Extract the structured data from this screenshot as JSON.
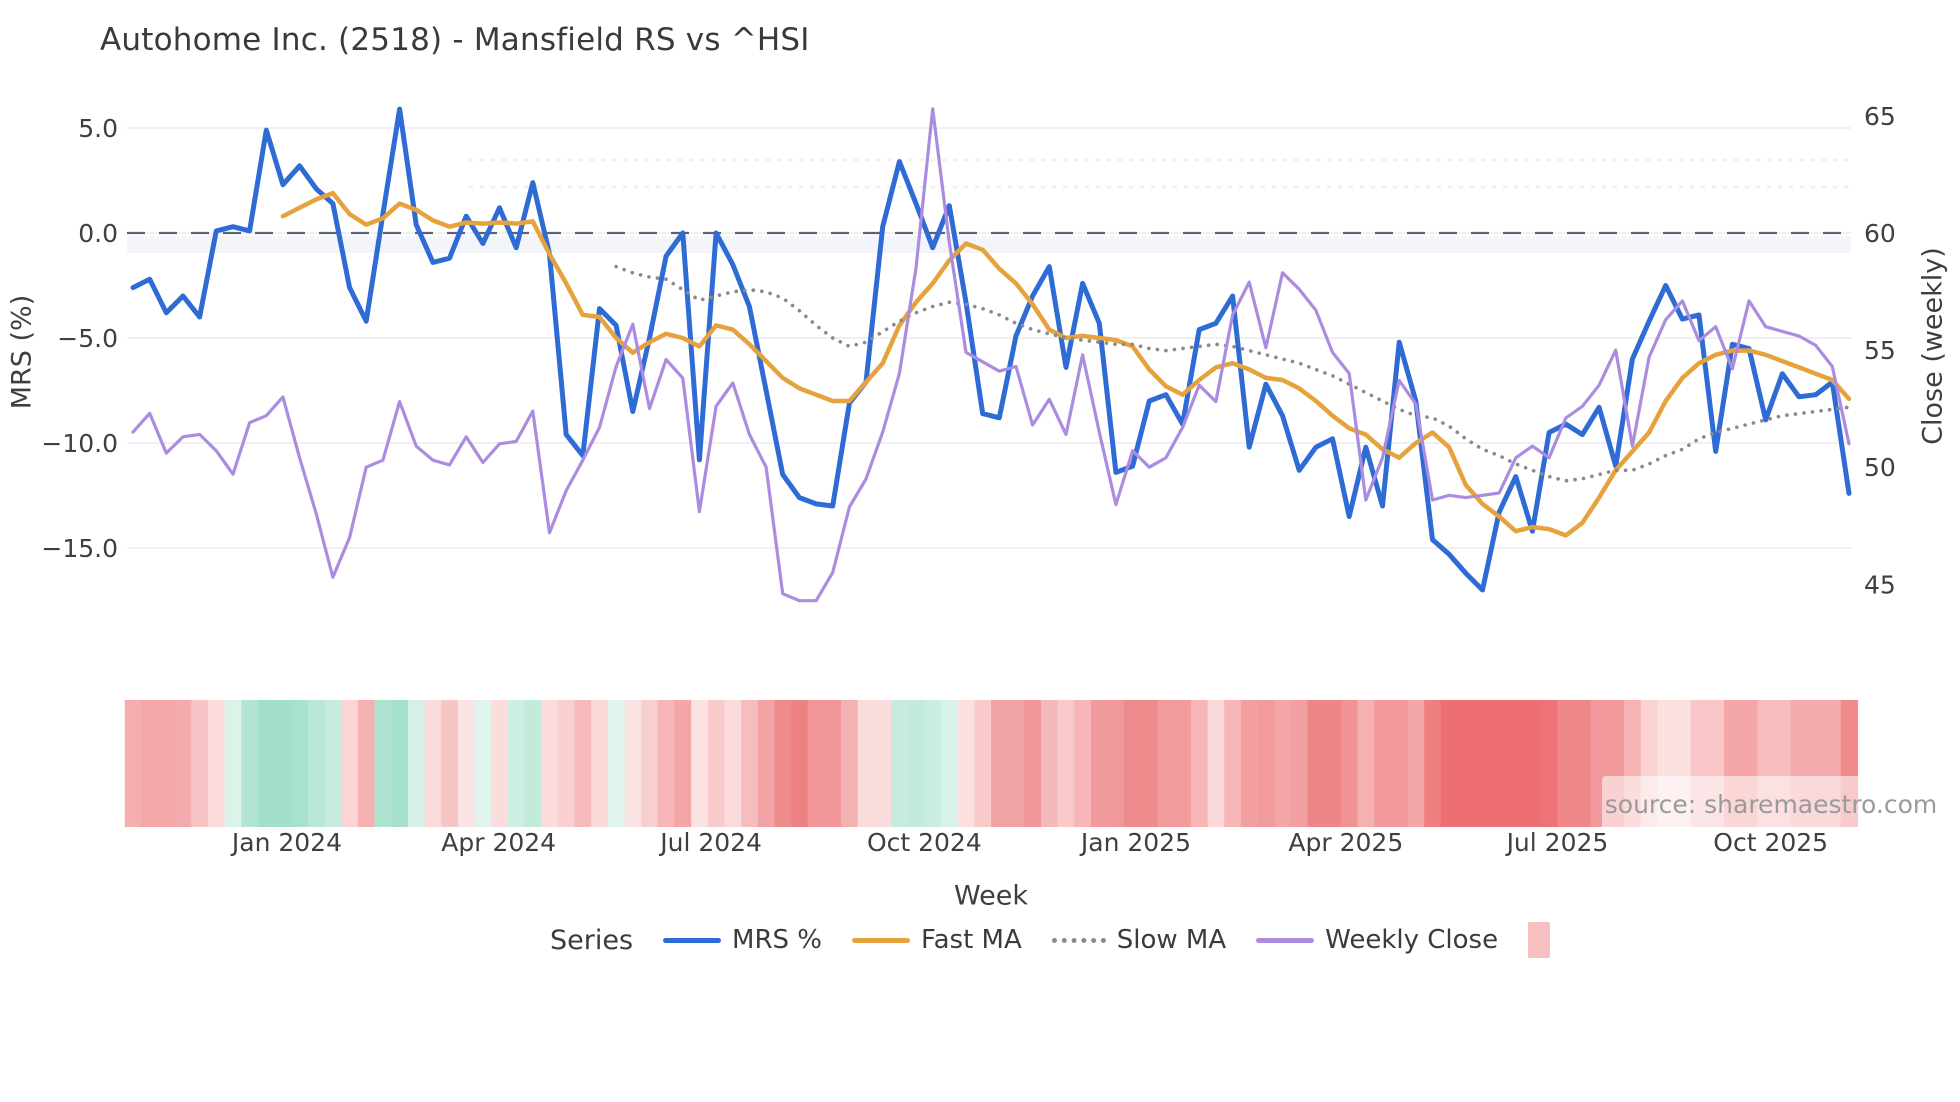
{
  "title": "Autohome Inc. (2518) - Mansfield RS vs ^HSI",
  "axes": {
    "y_left": {
      "title": "MRS (%)",
      "ticks": [
        {
          "label": "5.0",
          "v": 5
        },
        {
          "label": "0.0",
          "v": 0
        },
        {
          "label": "−5.0",
          "v": -5
        },
        {
          "label": "−10.0",
          "v": -10
        },
        {
          "label": "−15.0",
          "v": -15
        }
      ]
    },
    "y_right": {
      "title": "Close (weekly)",
      "ticks": [
        {
          "label": "65",
          "v": 65
        },
        {
          "label": "60",
          "v": 60
        },
        {
          "label": "55",
          "v": 55
        },
        {
          "label": "50",
          "v": 50
        },
        {
          "label": "45",
          "v": 45
        }
      ]
    },
    "x": {
      "title": "Week",
      "ticks": [
        {
          "label": "Jan 2024",
          "i": 9.24
        },
        {
          "label": "Apr 2024",
          "i": 21.95
        },
        {
          "label": "Jul 2024",
          "i": 34.7
        },
        {
          "label": "Oct 2024",
          "i": 47.5
        },
        {
          "label": "Jan 2025",
          "i": 60.2
        },
        {
          "label": "Apr 2025",
          "i": 72.8
        },
        {
          "label": "Jul 2025",
          "i": 85.5
        },
        {
          "label": "Oct 2025",
          "i": 98.3
        }
      ]
    }
  },
  "legend": {
    "series_title": "Series",
    "items": [
      {
        "label": "MRS %",
        "type": "line",
        "color": "#2e6bd5"
      },
      {
        "label": "Fast MA",
        "type": "line",
        "color": "#e6a23c"
      },
      {
        "label": "Slow MA",
        "type": "dotted",
        "color": "#8a8a8a"
      },
      {
        "label": "Weekly Close",
        "type": "line",
        "color": "#ab8ce0"
      },
      {
        "label": "",
        "type": "square",
        "color": "#f9c0c1"
      }
    ]
  },
  "source_note": "source: sharemaestro.com",
  "chart_data": {
    "type": "line",
    "x_unit": "week_index",
    "n_weeks": 104,
    "ylim_left": [
      -18,
      7
    ],
    "ylim_right": [
      43.5,
      66.5
    ],
    "zero_line_left": 0,
    "grid": true,
    "legend_position": "bottom",
    "series": [
      {
        "name": "MRS %",
        "axis": "left",
        "color": "#2e6bd5",
        "width": 5,
        "style": "solid",
        "values": [
          -2.6,
          -2.2,
          -3.8,
          -3.0,
          -4.0,
          0.1,
          0.3,
          0.1,
          4.9,
          2.3,
          3.2,
          2.1,
          1.4,
          -2.6,
          -4.2,
          0.9,
          5.9,
          0.4,
          -1.4,
          -1.2,
          0.8,
          -0.5,
          1.2,
          -0.7,
          2.4,
          -1.0,
          -9.6,
          -10.6,
          -3.6,
          -4.4,
          -8.5,
          -5.0,
          -1.1,
          0.0,
          -10.8,
          0.0,
          -1.5,
          -3.5,
          -7.5,
          -11.5,
          -12.6,
          -12.9,
          -13.0,
          -8.1,
          -7.1,
          0.3,
          3.4,
          1.4,
          -0.7,
          1.3,
          -3.3,
          -8.6,
          -8.8,
          -4.9,
          -3.0,
          -1.6,
          -6.4,
          -2.4,
          -4.3,
          -11.4,
          -11.1,
          -8.0,
          -7.7,
          -9.1,
          -4.6,
          -4.3,
          -3.0,
          -10.2,
          -7.2,
          -8.7,
          -11.3,
          -10.2,
          -9.8,
          -13.5,
          -10.2,
          -13.0,
          -5.2,
          -8.0,
          -14.6,
          -15.3,
          -16.2,
          -17.0,
          -13.3,
          -11.6,
          -14.2,
          -9.5,
          -9.1,
          -9.6,
          -8.3,
          -11.1,
          -6.0,
          -4.2,
          -2.5,
          -4.1,
          -3.9,
          -10.4,
          -5.3,
          -5.5,
          -8.9,
          -6.7,
          -7.8,
          -7.7,
          -7.1,
          -12.4
        ]
      },
      {
        "name": "Fast MA",
        "axis": "left",
        "color": "#e6a23c",
        "width": 4.5,
        "style": "solid",
        "values": [
          null,
          null,
          null,
          null,
          null,
          null,
          null,
          null,
          null,
          0.8,
          1.2,
          1.6,
          1.9,
          0.9,
          0.4,
          0.7,
          1.4,
          1.1,
          0.6,
          0.3,
          0.5,
          0.45,
          0.5,
          0.45,
          0.55,
          -1.0,
          -2.4,
          -3.9,
          -4.0,
          -5.0,
          -5.7,
          -5.2,
          -4.8,
          -5.0,
          -5.4,
          -4.4,
          -4.6,
          -5.3,
          -6.1,
          -6.9,
          -7.4,
          -7.7,
          -8.0,
          -8.0,
          -7.1,
          -6.2,
          -4.4,
          -3.3,
          -2.4,
          -1.3,
          -0.5,
          -0.8,
          -1.7,
          -2.4,
          -3.4,
          -4.6,
          -5.0,
          -4.9,
          -5.0,
          -5.1,
          -5.4,
          -6.5,
          -7.3,
          -7.7,
          -7.0,
          -6.4,
          -6.2,
          -6.5,
          -6.9,
          -7.0,
          -7.4,
          -8.0,
          -8.7,
          -9.3,
          -9.6,
          -10.3,
          -10.7,
          -10.0,
          -9.5,
          -10.2,
          -12.0,
          -12.9,
          -13.5,
          -14.2,
          -14.0,
          -14.1,
          -14.4,
          -13.8,
          -12.6,
          -11.3,
          -10.4,
          -9.5,
          -8.0,
          -6.9,
          -6.2,
          -5.8,
          -5.6,
          -5.6,
          -5.8,
          -6.1,
          -6.4,
          -6.7,
          -7.0,
          -7.9
        ]
      },
      {
        "name": "Slow MA",
        "axis": "left",
        "color": "#8a8a8a",
        "width": 3.6,
        "style": "dotted",
        "values": [
          null,
          null,
          null,
          null,
          null,
          null,
          null,
          null,
          null,
          null,
          null,
          null,
          null,
          null,
          null,
          null,
          null,
          null,
          null,
          null,
          null,
          null,
          null,
          null,
          null,
          null,
          null,
          null,
          null,
          -1.6,
          -1.9,
          -2.1,
          -2.2,
          -2.7,
          -3.2,
          -3.0,
          -2.8,
          -2.7,
          -2.8,
          -3.1,
          -3.7,
          -4.4,
          -5.0,
          -5.4,
          -5.2,
          -4.7,
          -4.2,
          -3.8,
          -3.5,
          -3.3,
          -3.4,
          -3.6,
          -3.9,
          -4.3,
          -4.6,
          -4.8,
          -5.0,
          -5.1,
          -5.2,
          -5.3,
          -5.3,
          -5.5,
          -5.6,
          -5.5,
          -5.4,
          -5.3,
          -5.4,
          -5.6,
          -5.8,
          -6.0,
          -6.2,
          -6.5,
          -6.8,
          -7.2,
          -7.6,
          -8.0,
          -8.4,
          -8.7,
          -8.8,
          -9.2,
          -9.8,
          -10.3,
          -10.6,
          -11.0,
          -11.3,
          -11.6,
          -11.8,
          -11.7,
          -11.5,
          -11.3,
          -11.3,
          -11.0,
          -10.6,
          -10.3,
          -9.8,
          -9.5,
          -9.3,
          -9.1,
          -8.9,
          -8.7,
          -8.6,
          -8.5,
          -8.4,
          -8.3
        ]
      },
      {
        "name": "Weekly Close",
        "axis": "right",
        "color": "#ab8ce0",
        "width": 3.2,
        "style": "solid",
        "values": [
          51.5,
          52.3,
          50.6,
          51.3,
          51.4,
          50.7,
          49.7,
          51.9,
          52.2,
          53.0,
          50.4,
          48.0,
          45.3,
          47.0,
          50.0,
          50.3,
          52.8,
          50.9,
          50.3,
          50.1,
          51.3,
          50.2,
          51.0,
          51.1,
          52.4,
          47.2,
          49.0,
          50.3,
          51.7,
          54.3,
          56.1,
          52.5,
          54.6,
          53.8,
          48.1,
          52.6,
          53.6,
          51.4,
          50.0,
          44.6,
          44.3,
          44.3,
          45.5,
          48.3,
          49.5,
          51.5,
          54.0,
          58.5,
          65.3,
          59.6,
          54.9,
          54.5,
          54.1,
          54.3,
          51.8,
          52.9,
          51.4,
          54.8,
          51.5,
          48.4,
          50.7,
          50.0,
          50.4,
          51.7,
          53.5,
          52.8,
          56.5,
          57.9,
          55.1,
          58.3,
          57.6,
          56.7,
          54.9,
          54.0,
          48.6,
          50.4,
          53.7,
          52.7,
          48.6,
          48.8,
          48.7,
          48.8,
          48.9,
          50.4,
          50.9,
          50.4,
          52.1,
          52.6,
          53.5,
          55.0,
          50.9,
          54.7,
          56.3,
          57.1,
          55.4,
          56.0,
          54.2,
          57.1,
          56.0,
          55.8,
          55.6,
          55.2,
          54.3,
          51.0
        ]
      }
    ],
    "weekly_return_heatmap": {
      "name": "weekly-return-strip",
      "colors": [
        "#f4aeb0",
        "#f2a7a9",
        "#f2a7a9",
        "#f3abad",
        "#f8c5c6",
        "#fbdbdb",
        "#dcf3ea",
        "#b2e5d1",
        "#a3e0ca",
        "#a3e0ca",
        "#a8e1cc",
        "#b9e7d5",
        "#c7ecdd",
        "#fbd5d5",
        "#f4b1b2",
        "#aee3d0",
        "#a6e1cc",
        "#d5f0e6",
        "#fadada",
        "#f7c5c6",
        "#fce3e3",
        "#def4ec",
        "#fbdddd",
        "#cdeee1",
        "#c2ebda",
        "#fbdbdb",
        "#f9d0d0",
        "#f6baba",
        "#fbd8d8",
        "#def4ec",
        "#fce3e3",
        "#f9cecf",
        "#f6b5b6",
        "#f3a5a7",
        "#fce3e3",
        "#f8caca",
        "#fadada",
        "#f6bdbe",
        "#f2a3a5",
        "#ee8b8d",
        "#ec8183",
        "#f09598",
        "#f09598",
        "#f4b1b2",
        "#fbdcdc",
        "#fbdcdc",
        "#c7ecdf",
        "#c3ebdc",
        "#c9ede0",
        "#d9f2e9",
        "#fcdfdf",
        "#f9caca",
        "#f2a3a5",
        "#f2a3a5",
        "#f09799",
        "#f6b9ba",
        "#f9caca",
        "#f6b5b6",
        "#f09a9c",
        "#f0989a",
        "#ee8a8c",
        "#ee8a8c",
        "#f19b9d",
        "#f19b9d",
        "#f6b5b6",
        "#fbd8d8",
        "#f6b5b6",
        "#f2a0a2",
        "#f19b9d",
        "#f3a5a7",
        "#f2a0a2",
        "#ee8688",
        "#ee8688",
        "#f09395",
        "#f5b0b1",
        "#f1999b",
        "#f1999b",
        "#f3a5a7",
        "#ee7e80",
        "#ed6f71",
        "#ed6f71",
        "#ed6f71",
        "#ed6f71",
        "#ed6f71",
        "#ed6f71",
        "#ed7376",
        "#f08789",
        "#f08789",
        "#f2999b",
        "#f2999b",
        "#f6b3b4",
        "#fad2d2",
        "#fcdfdf",
        "#fcdfdf",
        "#f9c6c7",
        "#f9c6c7",
        "#f3a5a7",
        "#f3a5a7",
        "#f7bcbd",
        "#f7bcbd",
        "#f4abad",
        "#f4abad",
        "#f4abad",
        "#f08a8c"
      ]
    },
    "colors": {
      "grid": "#eaecf1",
      "zero_dash": "#5c6173",
      "zero_band": "#e9ecf7",
      "tick_text": "#3f3f3f"
    }
  }
}
